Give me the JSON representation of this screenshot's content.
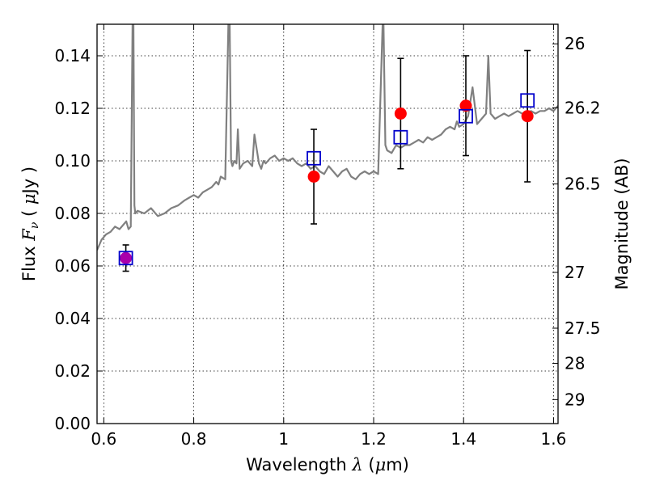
{
  "chart_data": {
    "type": "scatter",
    "xlabel": "Wavelength  λ (μm)",
    "xlabel_parts": {
      "text": "Wavelength ",
      "symbol": "λ",
      "unit_open": " (",
      "unit_mu": "μ",
      "unit_rest": "m)"
    },
    "ylabel": "Flux  Fν  ( μJy )",
    "ylabel_parts": {
      "text": "Flux  ",
      "symbol": "F",
      "sub": "ν",
      "open": "  ( ",
      "mu": "μ",
      "rest": "Jy )"
    },
    "y2label": "Magnitude (AB)",
    "xlim": [
      0.585,
      1.61
    ],
    "ylim": [
      0.0,
      0.152
    ],
    "xticks": [
      0.6,
      0.8,
      1.0,
      1.2,
      1.4,
      1.6
    ],
    "xtick_labels": [
      "0.6",
      "0.8",
      "1",
      "1.2",
      "1.4",
      "1.6"
    ],
    "yticks": [
      0.0,
      0.02,
      0.04,
      0.06,
      0.08,
      0.1,
      0.12,
      0.14
    ],
    "ytick_labels": [
      "0.00",
      "0.02",
      "0.04",
      "0.06",
      "0.08",
      "0.10",
      "0.12",
      "0.14"
    ],
    "y2ticks": [
      26,
      26.2,
      26.5,
      27,
      27.5,
      28,
      29
    ],
    "y2tick_labels": [
      "26",
      "26.2",
      "26.5",
      "27",
      "27.5",
      "28",
      "29"
    ],
    "grid": true,
    "colors": {
      "spectrum": "#808080",
      "observed": "#ff0000",
      "model": "#0000cc",
      "errorbar": "#000000",
      "overlap": "#aa00aa"
    },
    "series": [
      {
        "kind": "spectrum",
        "x": [
          0.585,
          0.595,
          0.605,
          0.615,
          0.625,
          0.635,
          0.645,
          0.65,
          0.655,
          0.66,
          0.664,
          0.666,
          0.668,
          0.67,
          0.675,
          0.69,
          0.705,
          0.72,
          0.735,
          0.75,
          0.765,
          0.78,
          0.79,
          0.8,
          0.81,
          0.82,
          0.83,
          0.84,
          0.85,
          0.855,
          0.86,
          0.87,
          0.877,
          0.88,
          0.883,
          0.886,
          0.89,
          0.895,
          0.898,
          0.902,
          0.91,
          0.92,
          0.93,
          0.935,
          0.945,
          0.95,
          0.955,
          0.96,
          0.97,
          0.98,
          0.99,
          1.0,
          1.01,
          1.02,
          1.03,
          1.04,
          1.05,
          1.06,
          1.07,
          1.08,
          1.09,
          1.1,
          1.11,
          1.12,
          1.13,
          1.14,
          1.15,
          1.16,
          1.17,
          1.18,
          1.19,
          1.2,
          1.21,
          1.22,
          1.222,
          1.226,
          1.23,
          1.24,
          1.25,
          1.26,
          1.27,
          1.28,
          1.29,
          1.3,
          1.31,
          1.32,
          1.33,
          1.34,
          1.35,
          1.36,
          1.37,
          1.38,
          1.385,
          1.39,
          1.4,
          1.41,
          1.42,
          1.43,
          1.44,
          1.45,
          1.455,
          1.46,
          1.47,
          1.48,
          1.49,
          1.5,
          1.51,
          1.52,
          1.53,
          1.54,
          1.55,
          1.56,
          1.57,
          1.58,
          1.59,
          1.6,
          1.61
        ],
        "y": [
          0.066,
          0.07,
          0.072,
          0.073,
          0.075,
          0.074,
          0.076,
          0.077,
          0.074,
          0.075,
          0.152,
          0.152,
          0.083,
          0.08,
          0.081,
          0.08,
          0.082,
          0.079,
          0.08,
          0.082,
          0.083,
          0.085,
          0.086,
          0.087,
          0.086,
          0.088,
          0.089,
          0.09,
          0.092,
          0.091,
          0.094,
          0.093,
          0.152,
          0.152,
          0.1,
          0.098,
          0.1,
          0.099,
          0.112,
          0.097,
          0.099,
          0.1,
          0.098,
          0.11,
          0.099,
          0.097,
          0.1,
          0.099,
          0.101,
          0.102,
          0.1,
          0.101,
          0.1,
          0.101,
          0.099,
          0.098,
          0.099,
          0.097,
          0.098,
          0.096,
          0.095,
          0.098,
          0.096,
          0.094,
          0.096,
          0.097,
          0.094,
          0.093,
          0.095,
          0.096,
          0.095,
          0.096,
          0.095,
          0.152,
          0.152,
          0.106,
          0.104,
          0.103,
          0.106,
          0.105,
          0.106,
          0.106,
          0.107,
          0.108,
          0.107,
          0.109,
          0.108,
          0.109,
          0.11,
          0.112,
          0.113,
          0.112,
          0.115,
          0.113,
          0.114,
          0.117,
          0.128,
          0.114,
          0.116,
          0.118,
          0.14,
          0.118,
          0.116,
          0.117,
          0.118,
          0.117,
          0.118,
          0.119,
          0.118,
          0.118,
          0.119,
          0.118,
          0.119,
          0.119,
          0.12,
          0.119,
          0.121
        ]
      },
      {
        "kind": "observed",
        "x": [
          0.649,
          1.067,
          1.26,
          1.405,
          1.542
        ],
        "y": [
          0.063,
          0.094,
          0.118,
          0.121,
          0.117
        ],
        "yerr": [
          0.005,
          0.018,
          0.021,
          0.019,
          0.025
        ]
      },
      {
        "kind": "model",
        "x": [
          0.649,
          1.067,
          1.26,
          1.405,
          1.542
        ],
        "y": [
          0.063,
          0.101,
          0.109,
          0.117,
          0.123
        ]
      }
    ]
  }
}
